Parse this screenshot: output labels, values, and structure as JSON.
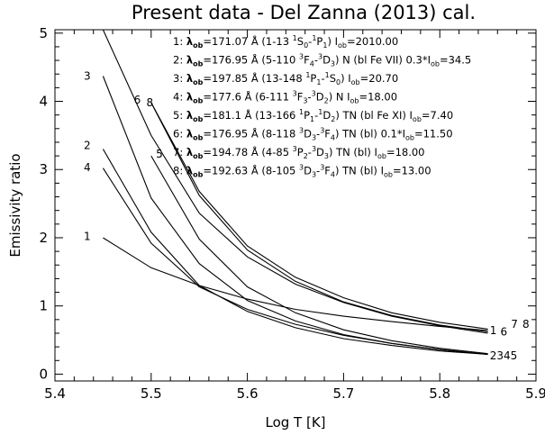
{
  "chart_data": {
    "type": "line",
    "title": "Present data - Del Zanna (2013) cal.",
    "xlabel": "Log T [K]",
    "ylabel": "Emissivity ratio",
    "xlim": [
      5.4,
      5.9
    ],
    "ylim": [
      -0.1,
      5.05
    ],
    "xticks": [
      5.4,
      5.5,
      5.6,
      5.7,
      5.8,
      5.9
    ],
    "xtick_labels": [
      "5.4",
      "5.5",
      "5.6",
      "5.7",
      "5.8",
      "5.9"
    ],
    "yticks": [
      0,
      1,
      2,
      3,
      4,
      5
    ],
    "ytick_labels": [
      "0",
      "1",
      "2",
      "3",
      "4",
      "5"
    ],
    "grid": false,
    "series": [
      {
        "name": "1",
        "x": [
          5.45,
          5.5,
          5.55,
          5.6,
          5.65,
          5.7,
          5.75,
          5.8,
          5.85
        ],
        "y": [
          2.0,
          1.56,
          1.3,
          1.1,
          0.95,
          0.85,
          0.77,
          0.7,
          0.64
        ]
      },
      {
        "name": "2",
        "x": [
          5.45,
          5.5,
          5.55,
          5.6,
          5.65,
          5.7,
          5.75,
          5.8,
          5.85
        ],
        "y": [
          3.3,
          2.08,
          1.3,
          0.92,
          0.68,
          0.52,
          0.42,
          0.34,
          0.29
        ]
      },
      {
        "name": "3",
        "x": [
          5.45,
          5.5,
          5.55,
          5.6,
          5.65,
          5.7,
          5.75,
          5.8,
          5.85
        ],
        "y": [
          4.37,
          2.58,
          1.62,
          1.08,
          0.78,
          0.58,
          0.45,
          0.36,
          0.29
        ]
      },
      {
        "name": "4",
        "x": [
          5.45,
          5.5,
          5.55,
          5.6,
          5.65,
          5.7,
          5.75,
          5.8,
          5.85
        ],
        "y": [
          3.02,
          1.92,
          1.28,
          0.95,
          0.73,
          0.57,
          0.45,
          0.36,
          0.29
        ]
      },
      {
        "name": "5",
        "x": [
          5.5,
          5.55,
          5.6,
          5.65,
          5.7,
          5.75,
          5.8,
          5.85
        ],
        "y": [
          3.2,
          1.98,
          1.28,
          0.9,
          0.65,
          0.49,
          0.38,
          0.3
        ]
      },
      {
        "name": "6",
        "x": [
          5.45,
          5.5,
          5.55,
          5.6,
          5.65,
          5.7,
          5.75,
          5.8,
          5.85
        ],
        "y": [
          5.05,
          3.5,
          2.36,
          1.72,
          1.32,
          1.05,
          0.85,
          0.71,
          0.6
        ]
      },
      {
        "name": "7",
        "x": [
          5.5,
          5.55,
          5.6,
          5.65,
          5.7,
          5.75,
          5.8,
          5.85
        ],
        "y": [
          3.98,
          2.68,
          1.88,
          1.42,
          1.12,
          0.9,
          0.76,
          0.66
        ]
      },
      {
        "name": "8",
        "x": [
          5.5,
          5.55,
          5.6,
          5.65,
          5.7,
          5.75,
          5.8,
          5.85
        ],
        "y": [
          3.98,
          2.62,
          1.82,
          1.36,
          1.06,
          0.86,
          0.72,
          0.62
        ]
      }
    ],
    "curve_labels": [
      {
        "text": "1",
        "x": 5.43,
        "y": 2.02
      },
      {
        "text": "2",
        "x": 5.43,
        "y": 3.35
      },
      {
        "text": "3",
        "x": 5.43,
        "y": 4.37
      },
      {
        "text": "4",
        "x": 5.43,
        "y": 3.03
      },
      {
        "text": "5",
        "x": 5.505,
        "y": 3.23
      },
      {
        "text": "6",
        "x": 5.482,
        "y": 4.02
      },
      {
        "text": "8",
        "x": 5.495,
        "y": 3.98
      },
      {
        "text": "1",
        "x": 5.852,
        "y": 0.64
      },
      {
        "text": "6",
        "x": 5.863,
        "y": 0.62
      },
      {
        "text": "7",
        "x": 5.874,
        "y": 0.73
      },
      {
        "text": "8",
        "x": 5.886,
        "y": 0.73
      },
      {
        "text": "2345",
        "x": 5.852,
        "y": 0.27
      }
    ],
    "legend": {
      "placement": "top-right",
      "entries": [
        [
          {
            "t": "1: "
          },
          {
            "t": "λ",
            "b": true
          },
          {
            "t": "ob",
            "b": true,
            "sub": true
          },
          {
            "t": "=171.07 Å (1-13 "
          },
          {
            "t": "1",
            "sup": true
          },
          {
            "t": "S"
          },
          {
            "t": "0",
            "sub": true
          },
          {
            "t": "-"
          },
          {
            "t": "1",
            "sup": true
          },
          {
            "t": "P"
          },
          {
            "t": "1",
            "sub": true
          },
          {
            "t": ")   I"
          },
          {
            "t": "ob",
            "sub": true
          },
          {
            "t": "=2010.00"
          }
        ],
        [
          {
            "t": "2: "
          },
          {
            "t": "λ",
            "b": true
          },
          {
            "t": "ob",
            "b": true,
            "sub": true
          },
          {
            "t": "=176.95 Å (5-110 "
          },
          {
            "t": "3",
            "sup": true
          },
          {
            "t": "F"
          },
          {
            "t": "4",
            "sub": true
          },
          {
            "t": "-"
          },
          {
            "t": "3",
            "sup": true
          },
          {
            "t": "D"
          },
          {
            "t": "3",
            "sub": true
          },
          {
            "t": ") N (bl Fe VII) 0.3*I"
          },
          {
            "t": "ob",
            "sub": true
          },
          {
            "t": "=34.5"
          }
        ],
        [
          {
            "t": "3: "
          },
          {
            "t": "λ",
            "b": true
          },
          {
            "t": "ob",
            "b": true,
            "sub": true
          },
          {
            "t": "=197.85 Å (13-148 "
          },
          {
            "t": "1",
            "sup": true
          },
          {
            "t": "P"
          },
          {
            "t": "1",
            "sub": true
          },
          {
            "t": "-"
          },
          {
            "t": "1",
            "sup": true
          },
          {
            "t": "S"
          },
          {
            "t": "0",
            "sub": true
          },
          {
            "t": ")   I"
          },
          {
            "t": "ob",
            "sub": true
          },
          {
            "t": "=20.70"
          }
        ],
        [
          {
            "t": "4: "
          },
          {
            "t": "λ",
            "b": true
          },
          {
            "t": "ob",
            "b": true,
            "sub": true
          },
          {
            "t": "=177.6 Å (6-111 "
          },
          {
            "t": "3",
            "sup": true
          },
          {
            "t": "F"
          },
          {
            "t": "3",
            "sub": true
          },
          {
            "t": "-"
          },
          {
            "t": "3",
            "sup": true
          },
          {
            "t": "D"
          },
          {
            "t": "2",
            "sub": true
          },
          {
            "t": ") N   I"
          },
          {
            "t": "ob",
            "sub": true
          },
          {
            "t": "=18.00"
          }
        ],
        [
          {
            "t": "5: "
          },
          {
            "t": "λ",
            "b": true
          },
          {
            "t": "ob",
            "b": true,
            "sub": true
          },
          {
            "t": "=181.1 Å (13-166 "
          },
          {
            "t": "1",
            "sup": true
          },
          {
            "t": "P"
          },
          {
            "t": "1",
            "sub": true
          },
          {
            "t": "-"
          },
          {
            "t": "1",
            "sup": true
          },
          {
            "t": "D"
          },
          {
            "t": "2",
            "sub": true
          },
          {
            "t": ") TN (bl Fe XI) I"
          },
          {
            "t": "ob",
            "sub": true
          },
          {
            "t": "=7.40"
          }
        ],
        [
          {
            "t": "6: "
          },
          {
            "t": "λ",
            "b": true
          },
          {
            "t": "ob",
            "b": true,
            "sub": true
          },
          {
            "t": "=176.95 Å (8-118 "
          },
          {
            "t": "3",
            "sup": true
          },
          {
            "t": "D"
          },
          {
            "t": "3",
            "sub": true
          },
          {
            "t": "-"
          },
          {
            "t": "3",
            "sup": true
          },
          {
            "t": "F"
          },
          {
            "t": "4",
            "sub": true
          },
          {
            "t": ") TN (bl) 0.1*I"
          },
          {
            "t": "ob",
            "sub": true
          },
          {
            "t": "=11.50"
          }
        ],
        [
          {
            "t": "7: "
          },
          {
            "t": "λ",
            "b": true
          },
          {
            "t": "ob",
            "b": true,
            "sub": true
          },
          {
            "t": "=194.78 Å (4-85 "
          },
          {
            "t": "3",
            "sup": true
          },
          {
            "t": "P"
          },
          {
            "t": "2",
            "sub": true
          },
          {
            "t": "-"
          },
          {
            "t": "3",
            "sup": true
          },
          {
            "t": "D"
          },
          {
            "t": "3",
            "sub": true
          },
          {
            "t": ") TN (bl) I"
          },
          {
            "t": "ob",
            "sub": true
          },
          {
            "t": "=18.00"
          }
        ],
        [
          {
            "t": "8: "
          },
          {
            "t": "λ",
            "b": true
          },
          {
            "t": "ob",
            "b": true,
            "sub": true
          },
          {
            "t": "=192.63 Å (8-105 "
          },
          {
            "t": "3",
            "sup": true
          },
          {
            "t": "D"
          },
          {
            "t": "3",
            "sub": true
          },
          {
            "t": "-"
          },
          {
            "t": "3",
            "sup": true
          },
          {
            "t": "F"
          },
          {
            "t": "4",
            "sub": true
          },
          {
            "t": ") TN (bl) I"
          },
          {
            "t": "ob",
            "sub": true
          },
          {
            "t": "=13.00"
          }
        ]
      ]
    },
    "colors": {
      "line": "#000000",
      "axis": "#000000",
      "background": "#ffffff"
    }
  }
}
